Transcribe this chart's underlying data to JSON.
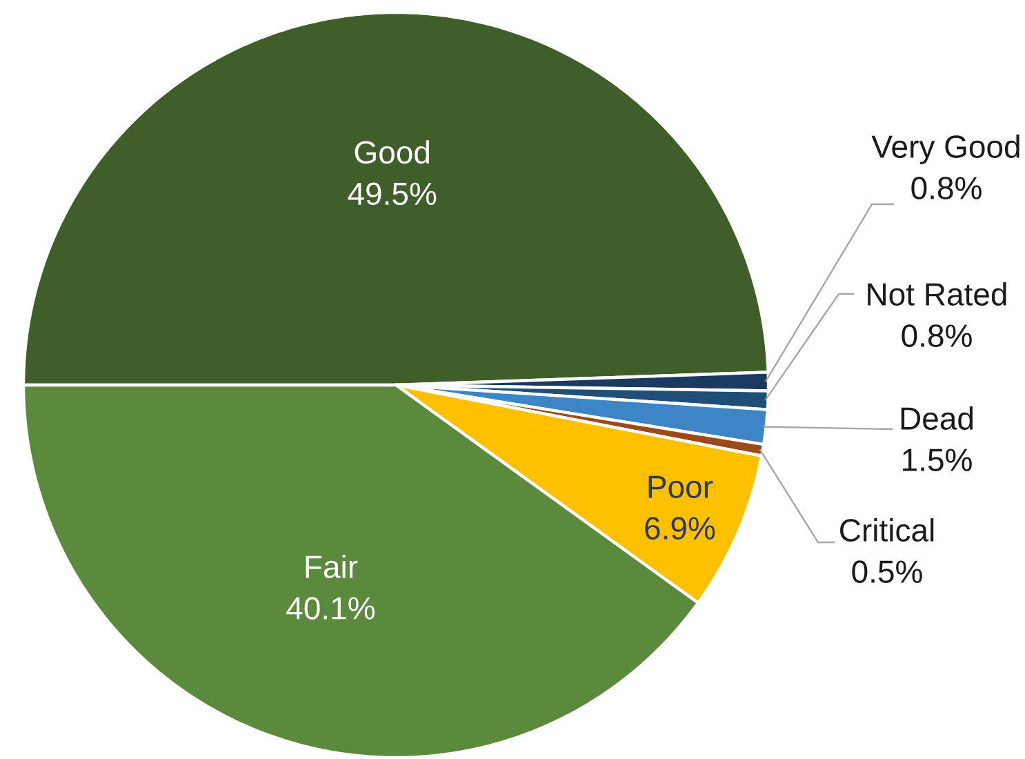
{
  "chart_data": {
    "type": "pie",
    "categories": [
      "Good",
      "Very Good",
      "Not Rated",
      "Dead",
      "Critical",
      "Poor",
      "Fair"
    ],
    "values": [
      49.5,
      0.8,
      0.8,
      1.5,
      0.5,
      6.9,
      40.1
    ],
    "colors": [
      "#3f5e29",
      "#1b3a5f",
      "#1f4e79",
      "#3d85c6",
      "#9c4a1a",
      "#ffc000",
      "#5b8a3c"
    ],
    "value_labels": [
      "49.5%",
      "0.8%",
      "0.8%",
      "1.5%",
      "0.5%",
      "6.9%",
      "40.1%"
    ]
  }
}
